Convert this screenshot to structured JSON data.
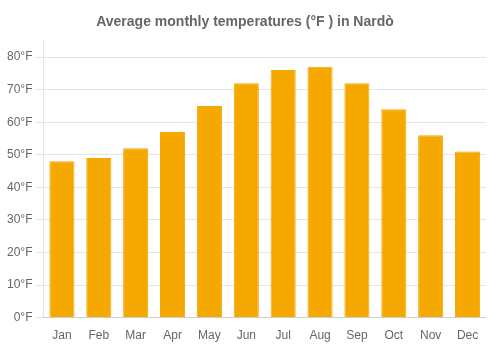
{
  "chart_data": {
    "type": "bar",
    "title": "Average monthly temperatures (°F ) in Nardò",
    "categories": [
      "Jan",
      "Feb",
      "Mar",
      "Apr",
      "May",
      "Jun",
      "Jul",
      "Aug",
      "Sep",
      "Oct",
      "Nov",
      "Dec"
    ],
    "values": [
      48,
      49,
      52,
      57,
      65,
      72,
      76,
      77,
      72,
      64,
      56,
      51
    ],
    "color": "#F5A800",
    "ylim": [
      0,
      85
    ],
    "yticks": [
      {
        "value": 0,
        "label": "0°F"
      },
      {
        "value": 10,
        "label": "10°F"
      },
      {
        "value": 20,
        "label": "20°F"
      },
      {
        "value": 30,
        "label": "30°F"
      },
      {
        "value": 40,
        "label": "40°F"
      },
      {
        "value": 50,
        "label": "50°F"
      },
      {
        "value": 60,
        "label": "60°F"
      },
      {
        "value": 70,
        "label": "70°F"
      },
      {
        "value": 80,
        "label": "80°F"
      }
    ],
    "grid": true
  }
}
